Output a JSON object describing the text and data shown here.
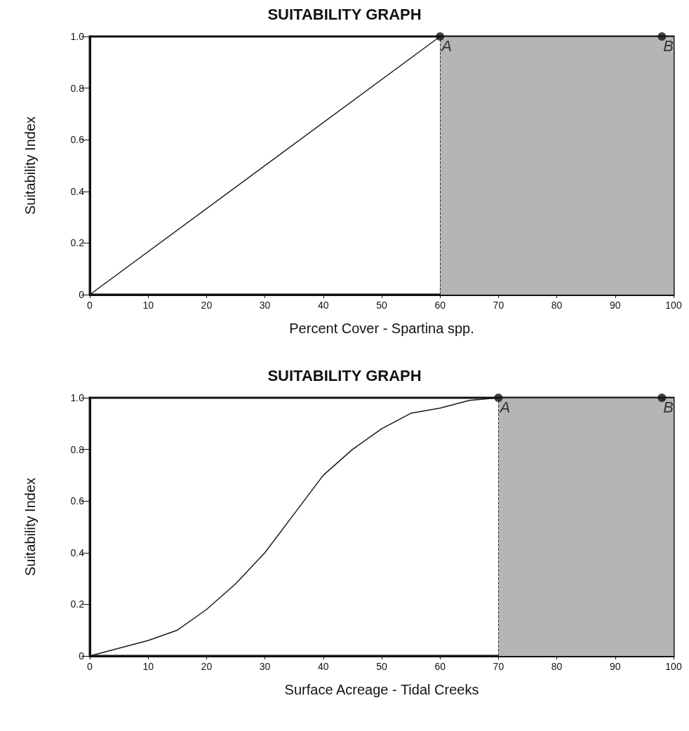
{
  "chart_data": [
    {
      "type": "line",
      "title": "SUITABILITY GRAPH",
      "xlabel": "Percent Cover - Spartina spp.",
      "ylabel": "Suitability Index",
      "grid": false,
      "xlim": [
        0,
        100
      ],
      "xticks": [
        0,
        10,
        20,
        30,
        40,
        50,
        60,
        70,
        80,
        90,
        100
      ],
      "ylim": [
        0,
        1
      ],
      "yticks": [
        0,
        0.2,
        0.4,
        0.6,
        0.8,
        {
          "value": 1,
          "label": "1.0"
        }
      ],
      "series": [
        {
          "color": "#1a1a1a",
          "marker": "none",
          "x": [
            0,
            60,
            98,
            100
          ],
          "values": [
            0,
            1,
            1,
            1
          ]
        },
        {
          "type": "scatter",
          "color": "#111111",
          "marker": "circle",
          "x": [
            60,
            98
          ],
          "values": [
            1,
            1
          ]
        }
      ],
      "bands": [
        {
          "axis": "x",
          "from": 60,
          "to": 100,
          "color": "#b5b5b5"
        }
      ],
      "ref_lines": [
        {
          "axis": "x",
          "value": 60,
          "line_style": "dashed",
          "color": "#333333"
        }
      ],
      "annotations": [
        {
          "text": "A",
          "x": 60,
          "y": 1
        },
        {
          "text": "B",
          "x": 98,
          "y": 1
        }
      ]
    },
    {
      "type": "line",
      "title": "SUITABILITY GRAPH",
      "xlabel": "Surface Acreage - Tidal Creeks",
      "ylabel": "Suitability Index",
      "grid": false,
      "xlim": [
        0,
        100
      ],
      "xticks": [
        0,
        10,
        20,
        30,
        40,
        50,
        60,
        70,
        80,
        90,
        100
      ],
      "ylim": [
        0,
        1
      ],
      "yticks": [
        0,
        0.2,
        0.4,
        0.6,
        0.8,
        {
          "value": 1,
          "label": "1.0"
        }
      ],
      "series": [
        {
          "color": "#1a1a1a",
          "marker": "none",
          "x": [
            0,
            5,
            10,
            15,
            20,
            25,
            30,
            35,
            40,
            45,
            50,
            55,
            60,
            65,
            70,
            98,
            100
          ],
          "values": [
            0,
            0.03,
            0.06,
            0.1,
            0.18,
            0.28,
            0.4,
            0.55,
            0.7,
            0.8,
            0.88,
            0.94,
            0.96,
            0.99,
            1,
            1,
            1
          ]
        },
        {
          "type": "scatter",
          "color": "#111111",
          "marker": "circle",
          "x": [
            70,
            98
          ],
          "values": [
            1,
            1
          ]
        }
      ],
      "bands": [
        {
          "axis": "x",
          "from": 70,
          "to": 100,
          "color": "#b5b5b5"
        }
      ],
      "ref_lines": [
        {
          "axis": "x",
          "value": 70,
          "line_style": "dashed",
          "color": "#333333"
        }
      ],
      "annotations": [
        {
          "text": "A",
          "x": 70,
          "y": 1
        },
        {
          "text": "B",
          "x": 98,
          "y": 1
        }
      ]
    }
  ]
}
